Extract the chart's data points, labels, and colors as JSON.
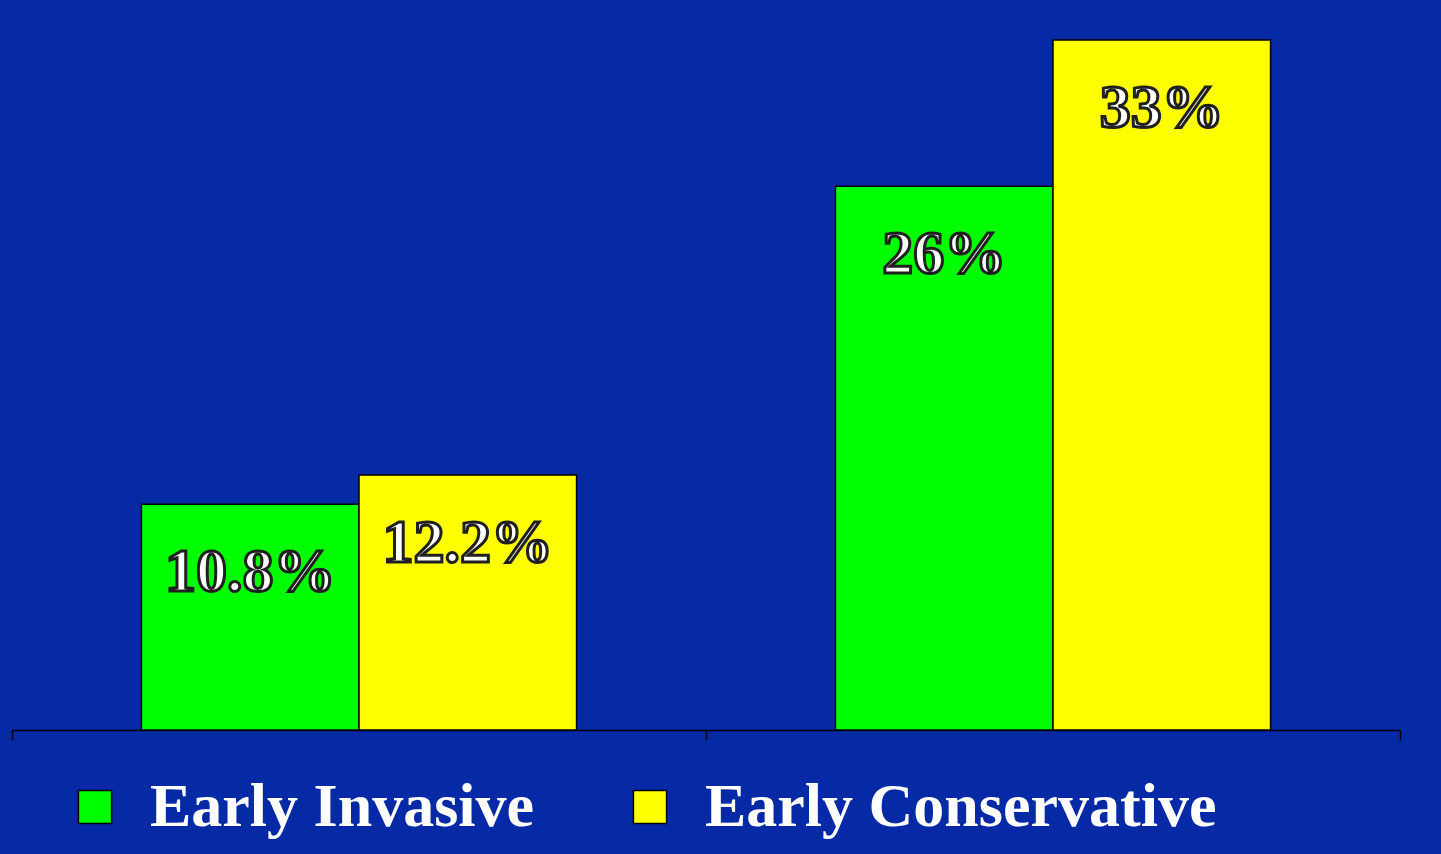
{
  "chart_data": {
    "type": "bar",
    "categories": [
      null,
      null
    ],
    "series": [
      {
        "name": "Early Invasive",
        "color": "#00ff00",
        "values": [
          10.8,
          26
        ],
        "value_labels": [
          "10.8%",
          "26%"
        ]
      },
      {
        "name": "Early Conservative",
        "color": "#ffff00",
        "values": [
          12.2,
          33
        ],
        "value_labels": [
          "12.2%",
          "33%"
        ]
      }
    ],
    "legend": "bottom",
    "grid": false,
    "tick_labels": false
  }
}
